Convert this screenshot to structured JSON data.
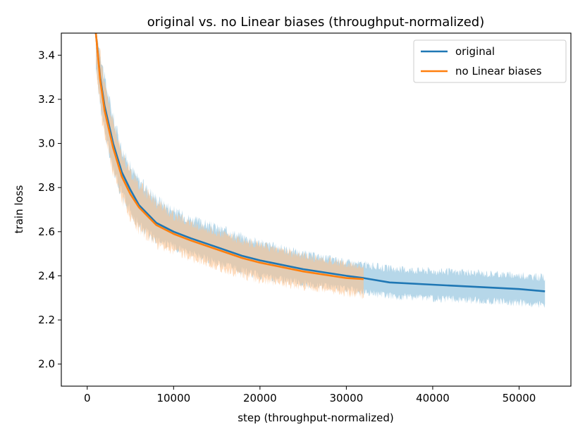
{
  "chart_data": {
    "type": "line",
    "title": "original vs. no Linear biases (throughput-normalized)",
    "xlabel": "step (throughput-normalized)",
    "ylabel": "train loss",
    "xlim": [
      -3000,
      56000
    ],
    "ylim": [
      1.9,
      3.5
    ],
    "xticks": [
      0,
      10000,
      20000,
      30000,
      40000,
      50000
    ],
    "xtick_labels": [
      "0",
      "10000",
      "20000",
      "30000",
      "40000",
      "50000"
    ],
    "yticks": [
      2.0,
      2.2,
      2.4,
      2.6,
      2.8,
      3.0,
      3.2,
      3.4
    ],
    "ytick_labels": [
      "2.0",
      "2.2",
      "2.4",
      "2.6",
      "2.8",
      "3.0",
      "3.2",
      "3.4"
    ],
    "grid": false,
    "legend_position": "top-right",
    "series": [
      {
        "name": "original",
        "color": "#1f77b4",
        "band_color": "#9ecae1",
        "x": [
          1000,
          1500,
          2000,
          3000,
          4000,
          5000,
          6000,
          8000,
          10000,
          12000,
          15000,
          18000,
          20000,
          25000,
          30000,
          32000,
          35000,
          40000,
          45000,
          50000,
          53000
        ],
        "y": [
          3.5,
          3.3,
          3.17,
          3.0,
          2.87,
          2.79,
          2.72,
          2.64,
          2.6,
          2.57,
          2.53,
          2.49,
          2.47,
          2.43,
          2.4,
          2.39,
          2.37,
          2.36,
          2.35,
          2.34,
          2.33
        ],
        "band_low": [
          3.3,
          3.15,
          3.02,
          2.86,
          2.74,
          2.66,
          2.6,
          2.54,
          2.51,
          2.48,
          2.44,
          2.4,
          2.38,
          2.35,
          2.32,
          2.31,
          2.29,
          2.28,
          2.27,
          2.26,
          2.25
        ],
        "band_high": [
          3.5,
          3.45,
          3.33,
          3.15,
          3.0,
          2.92,
          2.86,
          2.78,
          2.72,
          2.68,
          2.64,
          2.6,
          2.57,
          2.52,
          2.48,
          2.47,
          2.45,
          2.44,
          2.43,
          2.42,
          2.41
        ]
      },
      {
        "name": "no Linear biases",
        "color": "#ff7f0e",
        "band_color": "#fdc38f",
        "x": [
          1000,
          1500,
          2000,
          3000,
          4000,
          5000,
          6000,
          8000,
          10000,
          12000,
          15000,
          18000,
          20000,
          25000,
          30000,
          32000
        ],
        "y": [
          3.5,
          3.29,
          3.15,
          2.98,
          2.85,
          2.77,
          2.71,
          2.63,
          2.59,
          2.56,
          2.52,
          2.48,
          2.46,
          2.42,
          2.39,
          2.385
        ],
        "band_low": [
          3.3,
          3.12,
          3.0,
          2.84,
          2.72,
          2.64,
          2.58,
          2.52,
          2.49,
          2.46,
          2.42,
          2.38,
          2.36,
          2.33,
          2.3,
          2.29
        ],
        "band_high": [
          3.5,
          3.44,
          3.3,
          3.12,
          2.98,
          2.9,
          2.84,
          2.76,
          2.7,
          2.66,
          2.62,
          2.58,
          2.56,
          2.51,
          2.47,
          2.46
        ]
      }
    ]
  }
}
